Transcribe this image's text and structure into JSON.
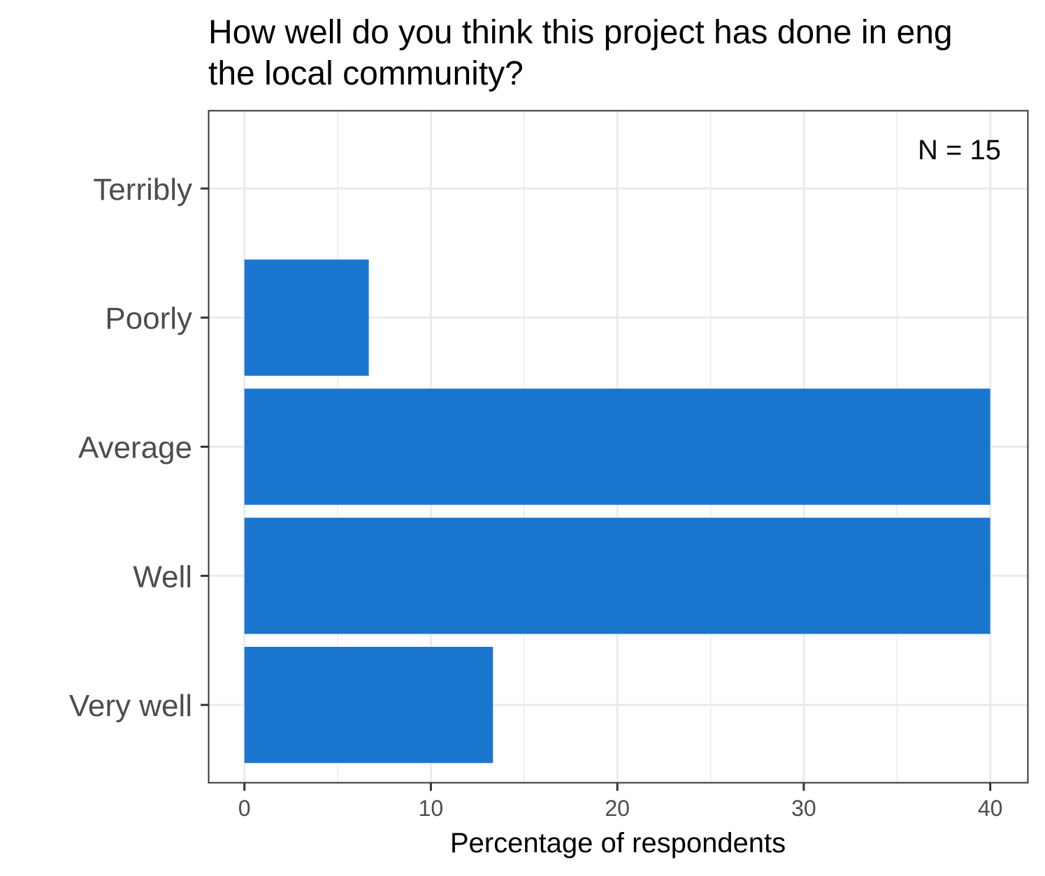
{
  "chart_data": {
    "type": "bar",
    "orientation": "horizontal",
    "title_lines": [
      "How well do you think this project has done in eng",
      "the local community?"
    ],
    "categories": [
      "Terribly",
      "Poorly",
      "Average",
      "Well",
      "Very well"
    ],
    "values": [
      0,
      6.67,
      40,
      40,
      13.33
    ],
    "xlabel": "Percentage of respondents",
    "ylabel": "",
    "xlim": [
      -1.9,
      42
    ],
    "x_ticks": [
      0,
      10,
      20,
      30,
      40
    ],
    "x_tick_labels": [
      "0",
      "10",
      "20",
      "30",
      "40"
    ],
    "annotation": "N = 15",
    "annotation_position": "top-right",
    "grid": true,
    "bar_color": "#1a75cf",
    "grid_color": "#ebebeb",
    "panel_border_color": "#333333"
  }
}
